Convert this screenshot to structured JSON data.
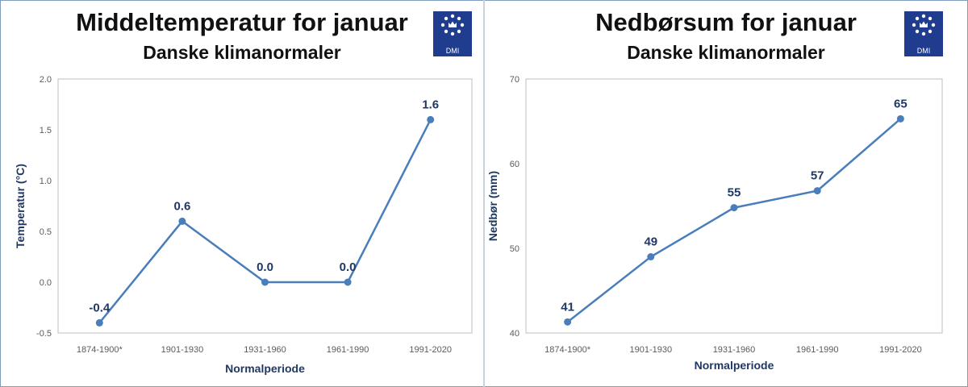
{
  "colors": {
    "series": "#4a7ebb",
    "label": "#1f3864",
    "logo_bg": "#1f3c8f"
  },
  "logo_text": "DMI",
  "chart_data": [
    {
      "type": "line",
      "title": "Middeltemperatur for januar",
      "subtitle": "Danske klimanormaler",
      "xlabel": "Normalperiode",
      "ylabel": "Temperatur (°C)",
      "categories": [
        "1874-1900*",
        "1901-1930",
        "1931-1960",
        "1961-1990",
        "1991-2020"
      ],
      "values": [
        -0.4,
        0.6,
        0.0,
        0.0,
        1.6
      ],
      "data_labels": [
        "-0.4",
        "0.6",
        "0.0",
        "0.0",
        "1.6"
      ],
      "ylim": [
        -0.5,
        2.0
      ],
      "yticks": [
        "-0.5",
        "0.0",
        "0.5",
        "1.0",
        "1.5",
        "2.0"
      ],
      "grid": false
    },
    {
      "type": "line",
      "title": "Nedbørsum for januar",
      "subtitle": "Danske klimanormaler",
      "xlabel": "Normalperiode",
      "ylabel": "Nedbør (mm)",
      "categories": [
        "1874-1900*",
        "1901-1930",
        "1931-1960",
        "1961-1990",
        "1991-2020"
      ],
      "values": [
        41.3,
        49.0,
        54.8,
        56.8,
        65.3
      ],
      "data_labels": [
        "41",
        "49",
        "55",
        "57",
        "65"
      ],
      "ylim": [
        40,
        70
      ],
      "yticks": [
        "40",
        "50",
        "60",
        "70"
      ],
      "grid": false
    }
  ]
}
